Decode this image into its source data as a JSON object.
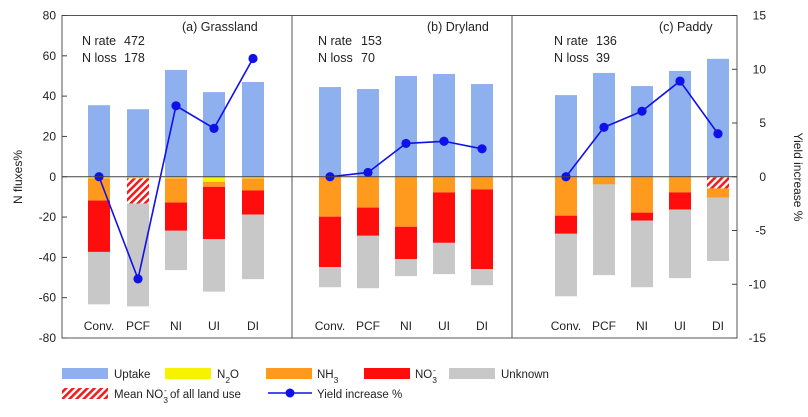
{
  "chart_data": {
    "type": "bar",
    "ylabel": "N fluxes%",
    "ylabel_right": "Yield increase %",
    "ylim": [
      -80,
      80
    ],
    "yticks": [
      80,
      60,
      40,
      20,
      0,
      -20,
      -40,
      -60,
      -80
    ],
    "ylim_right": [
      -15,
      15
    ],
    "yticks_right": [
      15,
      10,
      5,
      0,
      -5,
      -10,
      -15
    ],
    "categories": [
      "Conv.",
      "PCF",
      "NI",
      "UI",
      "DI"
    ],
    "stack_order": [
      "N2O",
      "NH3",
      "NO3-",
      "Unknown"
    ],
    "hatch_label": "Mean NO3- of all land use",
    "panels": [
      {
        "title": "(a) Grassland",
        "rate_label": "N rate",
        "rate_value": "472",
        "loss_label": "N loss",
        "loss_value": "178",
        "uptake": [
          35.5,
          33.5,
          53,
          42,
          47
        ],
        "N2O": [
          0.8,
          0.8,
          0.8,
          2.5,
          0.8
        ],
        "NH3": [
          11,
          0,
          12,
          2.5,
          6
        ],
        "NO3-": [
          25.5,
          0,
          14,
          26,
          12
        ],
        "Unknown": [
          26,
          51,
          19.5,
          26,
          32
        ],
        "hatch": [
          0,
          12.5,
          0,
          0,
          0
        ],
        "yield": [
          0,
          -9.5,
          6.6,
          4.5,
          11
        ]
      },
      {
        "title": "(b) Dryland",
        "rate_label": "N rate",
        "rate_value": "153",
        "loss_label": "N loss",
        "loss_value": "70",
        "uptake": [
          44.5,
          43.5,
          50,
          51,
          46
        ],
        "N2O": [
          0.3,
          0.3,
          0.3,
          0.3,
          0.3
        ],
        "NH3": [
          19.5,
          15,
          24.5,
          7.5,
          6
        ],
        "NO3-": [
          25,
          14,
          16,
          25,
          39.5
        ],
        "Unknown": [
          10,
          26,
          8.5,
          15.5,
          8
        ],
        "hatch": [
          0,
          0,
          0,
          0,
          0
        ],
        "yield": [
          0,
          0.4,
          3.1,
          3.3,
          2.6
        ]
      },
      {
        "title": "(c) Paddy",
        "rate_label": "N rate",
        "rate_value": "136",
        "loss_label": "N loss",
        "loss_value": "39",
        "uptake": [
          40.5,
          51.5,
          45,
          52.5,
          58.5
        ],
        "N2O": [
          0.3,
          0.3,
          0.3,
          0.3,
          0.3
        ],
        "NH3": [
          19,
          3.5,
          17.5,
          7.5,
          4.5
        ],
        "NO3-": [
          9,
          0,
          4,
          8.5,
          0
        ],
        "Unknown": [
          31,
          45,
          33,
          34,
          31.5
        ],
        "hatch": [
          0,
          0,
          0,
          0,
          5.5
        ],
        "yield": [
          0,
          4.6,
          6.1,
          8.9,
          4
        ]
      }
    ],
    "legend": {
      "uptake": "Uptake",
      "n2o_main": "N",
      "n2o_sub": "2",
      "n2o_tail": "O",
      "nh3_main": "NH",
      "nh3_sub": "3",
      "no3_main": "NO",
      "no3_sub": "3",
      "no3_sup": "-",
      "unknown": "Unknown",
      "mean_pre": "Mean NO",
      "mean_sub": "3",
      "mean_sup": "-",
      "mean_post": " of all land use",
      "yield": "Yield increase %"
    }
  },
  "colors": {
    "uptake": "#8fb0ef",
    "N2O": "#f6f200",
    "NH3": "#ff9a1e",
    "NO3-": "#ff0d0d",
    "Unknown": "#c8c8c8",
    "hatch": "#f11d1d",
    "yield_line": "#1010e8",
    "axis": "#333333"
  }
}
